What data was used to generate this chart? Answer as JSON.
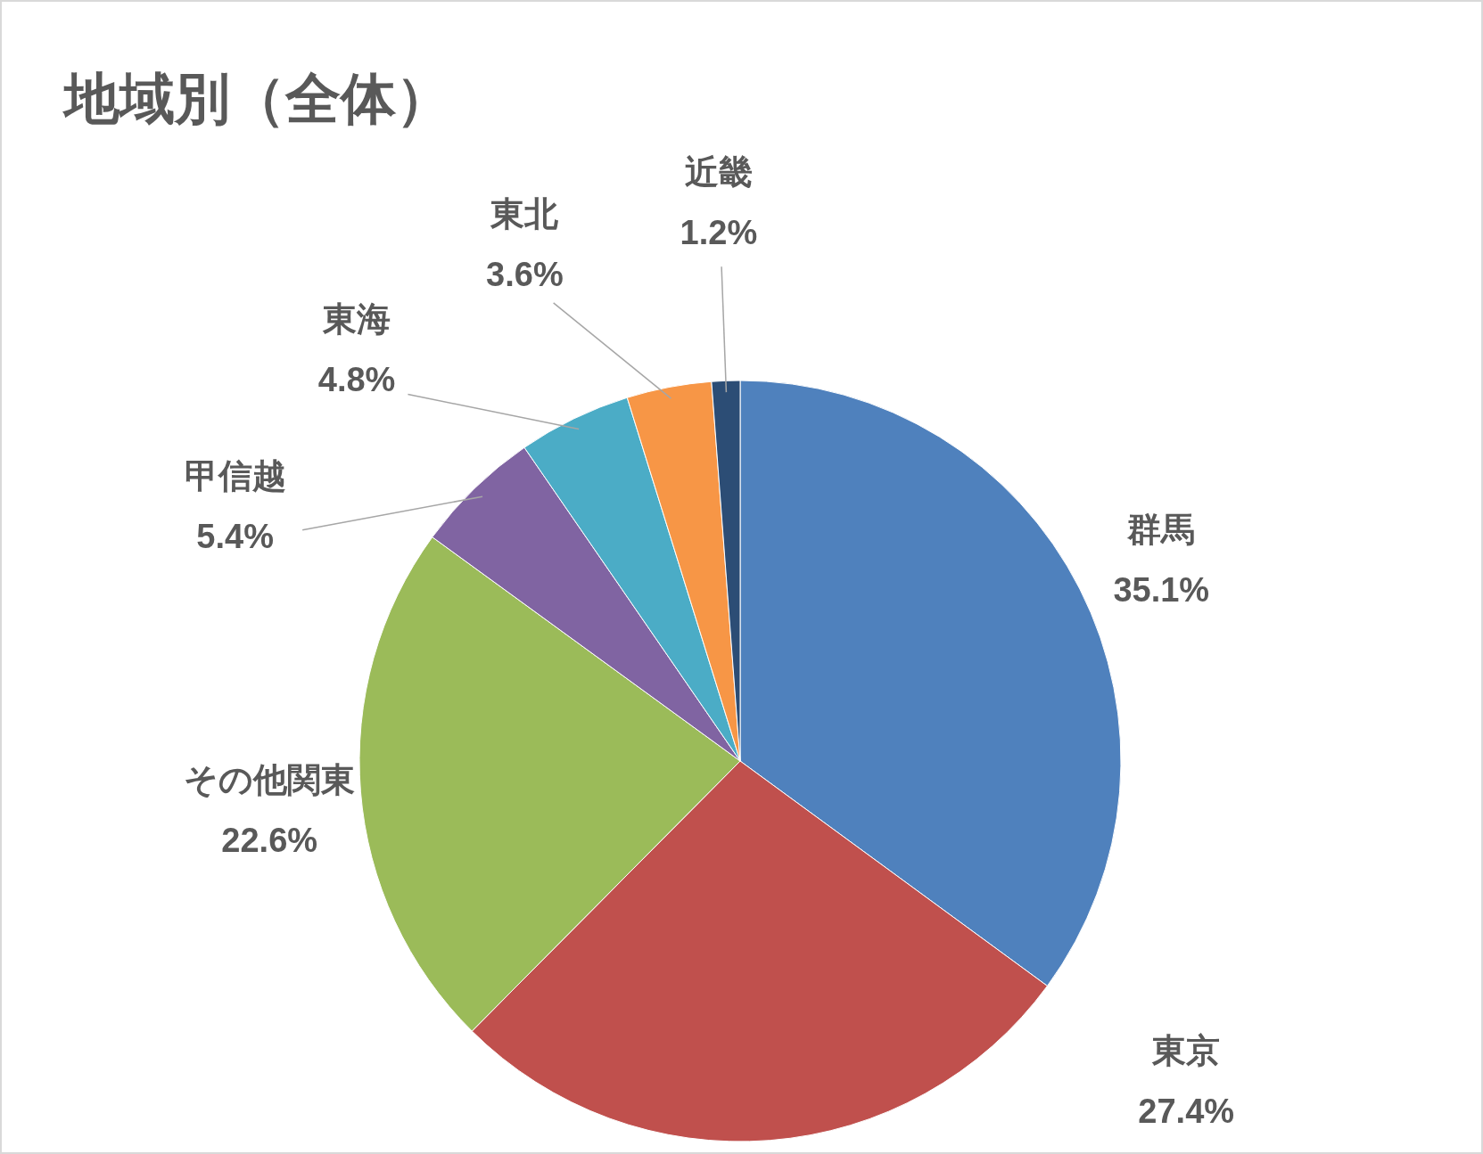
{
  "chart_data": {
    "type": "pie",
    "title": "地域別（全体）",
    "categories": [
      "群馬",
      "東京",
      "その他関東",
      "甲信越",
      "東海",
      "東北",
      "近畿"
    ],
    "values": [
      35.1,
      27.4,
      22.6,
      5.4,
      4.8,
      3.6,
      1.2
    ],
    "value_labels": [
      "35.1%",
      "27.4%",
      "22.6%",
      "5.4%",
      "4.8%",
      "3.6%",
      "1.2%"
    ],
    "colors": [
      "#4f81bd",
      "#c0504d",
      "#9bbb59",
      "#8064a2",
      "#4bacc6",
      "#f79646",
      "#2c4d75"
    ]
  }
}
